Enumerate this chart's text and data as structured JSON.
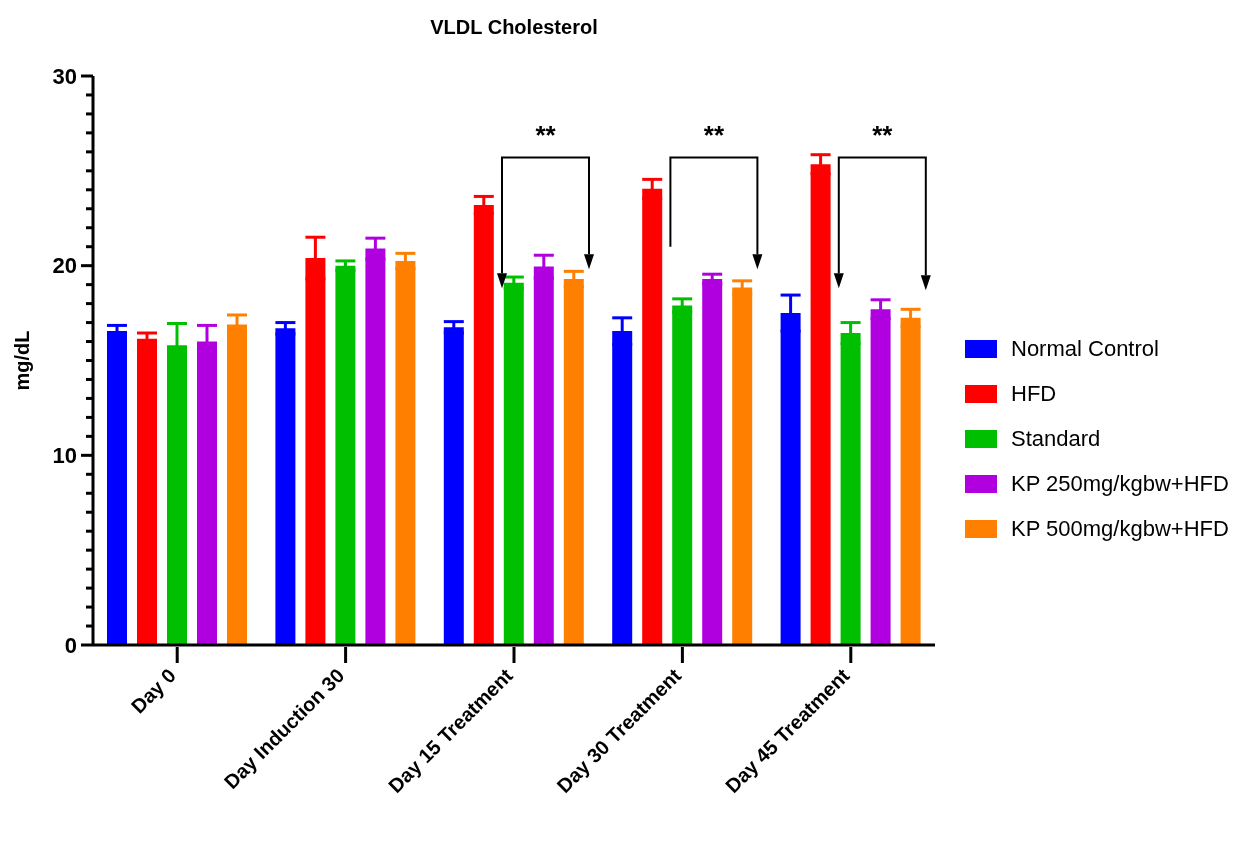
{
  "chart_data": {
    "type": "bar",
    "title": "VLDL Cholesterol",
    "ylabel": "mg/dL",
    "categories": [
      "Day 0",
      "Day Induction 30",
      "Day 15 Treatment",
      "Day 30 Treatment",
      "Day 45 Treatment"
    ],
    "series": [
      {
        "name": "Normal Control",
        "color": "#0000ff",
        "values": [
          16.55,
          16.7,
          16.75,
          16.55,
          17.5
        ],
        "errors": [
          0.3,
          0.3,
          0.3,
          0.7,
          0.95
        ]
      },
      {
        "name": "HFD",
        "color": "#ff0000",
        "values": [
          16.15,
          20.4,
          23.2,
          24.05,
          25.35
        ],
        "errors": [
          0.3,
          1.1,
          0.45,
          0.5,
          0.5
        ]
      },
      {
        "name": "Standard",
        "color": "#00bf00",
        "values": [
          15.8,
          20.0,
          19.1,
          17.9,
          16.45
        ],
        "errors": [
          1.15,
          0.25,
          0.3,
          0.35,
          0.55
        ]
      },
      {
        "name": "KP 250mg/kgbw+HFD",
        "color": "#b000e0",
        "values": [
          16.0,
          20.9,
          19.95,
          19.3,
          17.7
        ],
        "errors": [
          0.85,
          0.55,
          0.6,
          0.25,
          0.5
        ]
      },
      {
        "name": "KP 500mg/kgbw+HFD",
        "color": "#ff8000",
        "values": [
          16.9,
          20.25,
          19.3,
          18.85,
          17.25
        ],
        "errors": [
          0.5,
          0.4,
          0.4,
          0.35,
          0.45
        ]
      }
    ],
    "ylim": [
      0,
      30
    ],
    "yticks": [
      0,
      {
        "value": 1,
        "label": null
      },
      {
        "value": 2,
        "label": null
      },
      {
        "value": 3,
        "label": null
      },
      {
        "value": 4,
        "label": null
      },
      {
        "value": 5,
        "label": null
      },
      {
        "value": 6,
        "label": null
      },
      {
        "value": 7,
        "label": null
      },
      {
        "value": 8,
        "label": null
      },
      {
        "value": 9,
        "label": null
      },
      10,
      {
        "value": 11,
        "label": null
      },
      {
        "value": 12,
        "label": null
      },
      {
        "value": 13,
        "label": null
      },
      {
        "value": 14,
        "label": null
      },
      {
        "value": 15,
        "label": null
      },
      {
        "value": 16,
        "label": null
      },
      {
        "value": 17,
        "label": null
      },
      {
        "value": 18,
        "label": null
      },
      {
        "value": 19,
        "label": null
      },
      20,
      {
        "value": 21,
        "label": null
      },
      {
        "value": 22,
        "label": null
      },
      {
        "value": 23,
        "label": null
      },
      {
        "value": 24,
        "label": null
      },
      {
        "value": 25,
        "label": null
      },
      {
        "value": 26,
        "label": null
      },
      {
        "value": 27,
        "label": null
      },
      {
        "value": 28,
        "label": null
      },
      {
        "value": 29,
        "label": null
      },
      30
    ],
    "annotations": [
      "**",
      "**",
      "**"
    ],
    "grid": false,
    "legend": "right"
  }
}
